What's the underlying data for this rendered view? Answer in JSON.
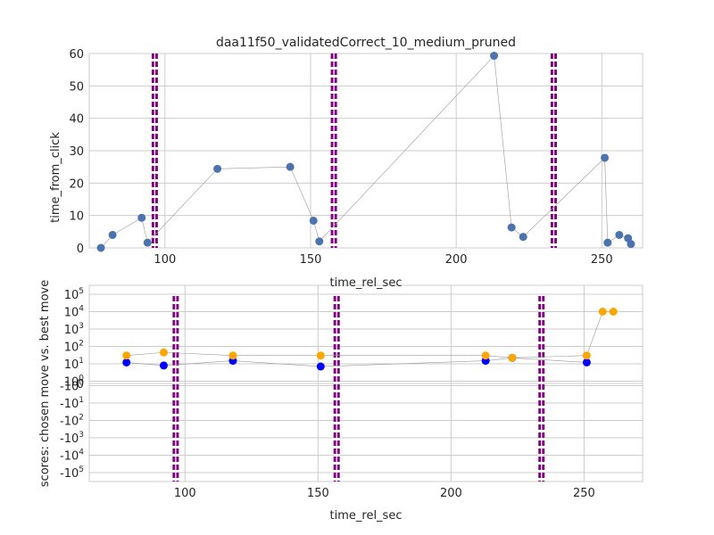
{
  "figure_title": "daa11f50_validatedCorrect_10_medium_pruned",
  "chart_data": [
    {
      "type": "line",
      "title": "daa11f50_validatedCorrect_10_medium_pruned",
      "xlabel": "time_rel_sec",
      "ylabel": "time_from_click",
      "xlim": [
        74,
        264
      ],
      "ylim": [
        0,
        60
      ],
      "xticks": [
        "100",
        "150",
        "200",
        "250"
      ],
      "yticks": [
        "0",
        "10",
        "20",
        "30",
        "40",
        "50",
        "60"
      ],
      "grid": true,
      "vlines": [
        96.5,
        158,
        233.5
      ],
      "series": [
        {
          "color": "#4c72b0",
          "x": [
            78,
            82,
            92,
            94,
            118,
            143,
            151,
            153,
            213,
            219,
            223,
            251,
            252,
            256,
            259,
            260
          ],
          "y": [
            0,
            4,
            9.3,
            1.6,
            24.4,
            25,
            8.4,
            2,
            59.3,
            6.3,
            3.4,
            27.8,
            1.6,
            4,
            3,
            1.2
          ]
        }
      ]
    },
    {
      "type": "scatter",
      "xlabel": "time_rel_sec",
      "ylabel": "scores: chosen move vs. best move",
      "xlim": [
        64,
        272
      ],
      "yscale": "symlog",
      "ytick_values": [
        100000,
        10000,
        1000,
        100,
        10,
        1,
        0,
        -1,
        -10,
        -100,
        -1000,
        -10000,
        -100000
      ],
      "ytick_labels": [
        "10^5",
        "10^4",
        "10^3",
        "10^2",
        "10^1",
        "10^0",
        "0",
        "-10^0",
        "-10^1",
        "-10^2",
        "-10^3",
        "-10^4",
        "-10^5"
      ],
      "xticks": [
        "100",
        "150",
        "200",
        "250"
      ],
      "grid": true,
      "vlines": [
        96.5,
        157,
        234
      ],
      "series": [
        {
          "color": "#0000ff",
          "x": [
            78,
            92,
            118,
            151,
            213,
            223,
            251
          ],
          "y": [
            12,
            8,
            15,
            7,
            15,
            22,
            12
          ]
        },
        {
          "color": "#ffa500",
          "x": [
            78,
            92,
            118,
            151,
            213,
            223,
            251,
            257,
            261
          ],
          "y": [
            30,
            45,
            30,
            30,
            30,
            22,
            30,
            10000,
            10000
          ]
        }
      ]
    }
  ]
}
